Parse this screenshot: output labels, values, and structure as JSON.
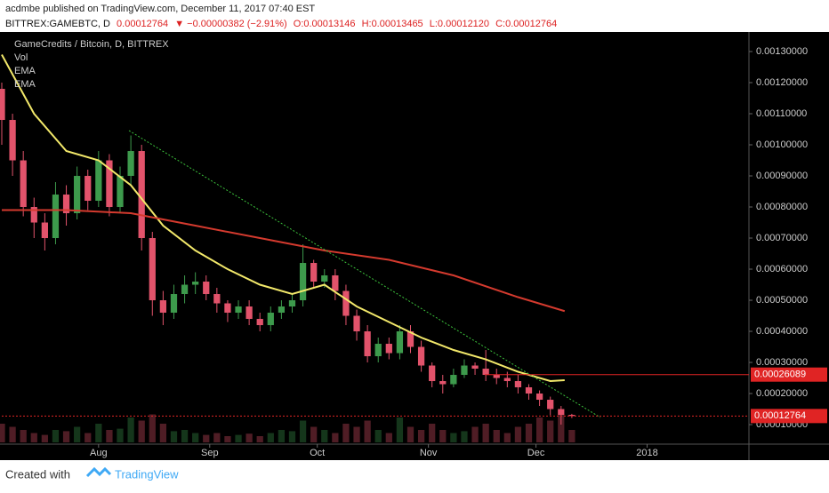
{
  "header": {
    "author_line": "acdmbe published on TradingView.com, December 11, 2017 07:40 EST",
    "symbol": "BITTREX:GAMEBTC, D",
    "last": "0.00012764",
    "change": "▼ −0.00000382 (−2.91%)",
    "open": "O:0.00013146",
    "high": "H:0.00013465",
    "low": "L:0.00012120",
    "close": "C:0.00012764"
  },
  "chart_data": {
    "type": "candlestick",
    "title": "GameCredits / Bitcoin, D, BITTREX",
    "up_color": "#3d9a4c",
    "down_color": "#e2536b",
    "x": [
      0,
      3,
      6,
      9,
      12,
      15,
      18,
      21,
      24,
      27,
      30,
      33,
      36,
      39,
      42,
      45,
      48,
      51,
      54,
      57,
      60,
      63,
      66,
      69,
      72,
      75,
      78,
      81,
      84,
      87,
      90,
      93,
      96,
      99,
      102,
      105,
      108,
      111,
      114,
      117,
      120,
      123,
      126,
      129,
      132,
      135,
      138,
      141,
      144,
      147,
      150,
      153,
      156,
      159
    ],
    "open": [
      0.00118,
      0.00108,
      0.00095,
      0.0008,
      0.00075,
      0.0007,
      0.00084,
      0.00078,
      0.0009,
      0.00082,
      0.00095,
      0.0008,
      0.0009,
      0.00098,
      0.0007,
      0.0005,
      0.00046,
      0.00052,
      0.00055,
      0.00056,
      0.00052,
      0.00049,
      0.00046,
      0.00048,
      0.00044,
      0.00042,
      0.00046,
      0.00048,
      0.0005,
      0.00062,
      0.00056,
      0.00058,
      0.00053,
      0.00045,
      0.0004,
      0.00032,
      0.00036,
      0.00033,
      0.0004,
      0.00035,
      0.00029,
      0.00024,
      0.00023,
      0.00026,
      0.00029,
      0.00028,
      0.00026,
      0.00025,
      0.00024,
      0.00022,
      0.0002,
      0.00018,
      0.00015,
      0.00013146
    ],
    "high": [
      0.0012,
      0.0011,
      0.00098,
      0.00083,
      0.00078,
      0.00088,
      0.00087,
      0.00093,
      0.00092,
      0.00098,
      0.00097,
      0.00093,
      0.00103,
      0.001,
      0.00072,
      0.00053,
      0.00055,
      0.00058,
      0.00059,
      0.00058,
      0.00054,
      0.0005,
      0.0005,
      0.0005,
      0.00046,
      0.00048,
      0.0005,
      0.00052,
      0.00068,
      0.00063,
      0.0006,
      0.0006,
      0.00055,
      0.00047,
      0.00042,
      0.00038,
      0.00038,
      0.00042,
      0.00042,
      0.00037,
      0.0003,
      0.00026,
      0.00028,
      0.00031,
      0.0003,
      0.00034,
      0.00028,
      0.00027,
      0.00026,
      0.00023,
      0.00021,
      0.00019,
      0.00016,
      0.00013465
    ],
    "low": [
      0.001,
      0.0009,
      0.00077,
      0.0007,
      0.00066,
      0.00068,
      0.00074,
      0.00076,
      0.00079,
      0.0008,
      0.00077,
      0.00078,
      0.00087,
      0.00066,
      0.00045,
      0.00042,
      0.00044,
      0.00049,
      0.00052,
      0.0005,
      0.00046,
      0.00043,
      0.00044,
      0.00042,
      0.0004,
      0.0004,
      0.00044,
      0.00046,
      0.00048,
      0.00054,
      0.00054,
      0.0005,
      0.00042,
      0.00037,
      0.0003,
      0.0003,
      0.00031,
      0.00031,
      0.00033,
      0.00027,
      0.00022,
      0.0002,
      0.00022,
      0.00025,
      0.00026,
      0.00024,
      0.00023,
      0.00022,
      0.0002,
      0.00018,
      0.00016,
      0.00013,
      0.0001,
      0.0001212
    ],
    "close": [
      0.00108,
      0.00095,
      0.0008,
      0.00075,
      0.0007,
      0.00084,
      0.00078,
      0.0009,
      0.00082,
      0.00095,
      0.0008,
      0.0009,
      0.00098,
      0.0007,
      0.0005,
      0.00046,
      0.00052,
      0.00055,
      0.00056,
      0.00052,
      0.00049,
      0.00046,
      0.00048,
      0.00044,
      0.00042,
      0.00046,
      0.00048,
      0.0005,
      0.00062,
      0.00056,
      0.00058,
      0.00053,
      0.00045,
      0.0004,
      0.00032,
      0.00036,
      0.00033,
      0.0004,
      0.00035,
      0.00029,
      0.00024,
      0.00023,
      0.00026,
      0.00029,
      0.00028,
      0.00026,
      0.00025,
      0.00024,
      0.00022,
      0.0002,
      0.00018,
      0.00015,
      0.00013146,
      0.00012764
    ],
    "volume": {
      "name": "Vol",
      "vlim": [
        0,
        100
      ],
      "values": [
        30,
        25,
        20,
        15,
        12,
        20,
        18,
        25,
        15,
        30,
        20,
        22,
        40,
        35,
        45,
        30,
        18,
        20,
        15,
        12,
        15,
        10,
        12,
        14,
        10,
        15,
        20,
        18,
        35,
        25,
        20,
        15,
        30,
        25,
        35,
        20,
        15,
        40,
        25,
        20,
        30,
        20,
        15,
        18,
        25,
        30,
        20,
        15,
        25,
        30,
        40,
        35,
        45,
        20
      ]
    },
    "series": [
      {
        "name": "EMA",
        "color": "#f2e86a",
        "x": [
          0,
          9,
          18,
          27,
          36,
          45,
          54,
          63,
          72,
          81,
          90,
          99,
          108,
          117,
          126,
          135,
          144,
          153,
          157
        ],
        "values": [
          0.00129,
          0.0011,
          0.00098,
          0.00095,
          0.00087,
          0.00074,
          0.00066,
          0.0006,
          0.00055,
          0.00052,
          0.00055,
          0.00048,
          0.00043,
          0.00038,
          0.00034,
          0.00031,
          0.00027,
          0.00024,
          0.000243
        ]
      },
      {
        "name": "EMA",
        "color": "#d43a2e",
        "x": [
          0,
          18,
          36,
          54,
          72,
          90,
          108,
          126,
          144,
          157
        ],
        "values": [
          0.00079,
          0.00079,
          0.00078,
          0.00074,
          0.0007,
          0.00066,
          0.00063,
          0.00058,
          0.00051,
          0.000465
        ]
      }
    ],
    "price_lines": [
      {
        "value": 0.00026089,
        "label": "0.00026089",
        "color": "#e02424"
      },
      {
        "value": 0.00012764,
        "label": "0.00012764",
        "color": "#e02424"
      }
    ],
    "xlim": [
      0,
      208.4
    ],
    "xticks": [
      {
        "value": 27,
        "label": "Aug"
      },
      {
        "value": 58,
        "label": "Sep"
      },
      {
        "value": 88,
        "label": "Oct"
      },
      {
        "value": 119,
        "label": "Nov"
      },
      {
        "value": 149,
        "label": "Dec"
      },
      {
        "value": 180,
        "label": "2018"
      }
    ],
    "ylim": [
      4.29e-05,
      0.0013629
    ],
    "yticks": [
      {
        "value": 0.0001,
        "label": "0.00010000"
      },
      {
        "value": 0.0002,
        "label": "0.00020000"
      },
      {
        "value": 0.0003,
        "label": "0.00030000"
      },
      {
        "value": 0.0004,
        "label": "0.00040000"
      },
      {
        "value": 0.0005,
        "label": "0.00050000"
      },
      {
        "value": 0.0006,
        "label": "0.00060000"
      },
      {
        "value": 0.0007,
        "label": "0.00070000"
      },
      {
        "value": 0.0008,
        "label": "0.00080000"
      },
      {
        "value": 0.0009,
        "label": "0.00090000"
      },
      {
        "value": 0.001,
        "label": "0.00100000"
      },
      {
        "value": 0.0011,
        "label": "0.00110000"
      },
      {
        "value": 0.0012,
        "label": "0.00120000"
      },
      {
        "value": 0.0013,
        "label": "0.00130000"
      }
    ]
  },
  "footer": {
    "created": "Created with",
    "brand": "TradingView"
  }
}
